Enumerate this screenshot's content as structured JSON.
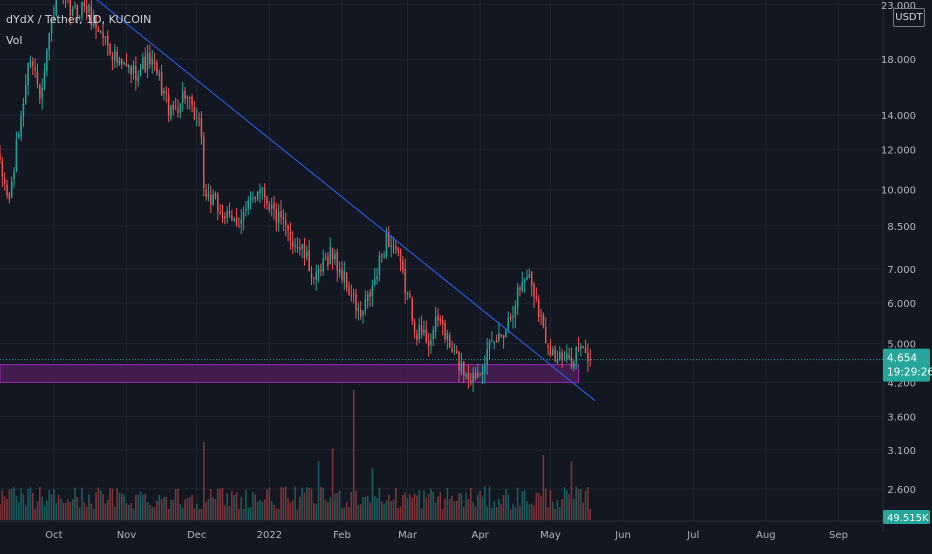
{
  "legend": {
    "symbol_line": "dYdX / Tether, 1D, KUCOIN",
    "vol_label": "Vol"
  },
  "currency_badge": "USDT",
  "colors": {
    "background": "#131722",
    "grid": "#1f2430",
    "up": "#26a69a",
    "down": "#ef5350",
    "trendline": "#2962ff",
    "zone_fill": "#4a1d54",
    "zone_border": "#9c27b0",
    "price_label_bg": "#26a69a",
    "axis_text": "#b2b5be"
  },
  "price_label": {
    "price": "4.654",
    "countdown": "19:29:26"
  },
  "volume_label": "49.515K",
  "chart_data": {
    "type": "candlestick",
    "title": "dYdX / Tether, 1D, KUCOIN",
    "y_scale": "log",
    "ylim": [
      2.25,
      23.5
    ],
    "y_ticks": [
      {
        "value": 2.6,
        "label": "2.600"
      },
      {
        "value": 3.1,
        "label": "3.100"
      },
      {
        "value": 3.6,
        "label": "3.600"
      },
      {
        "value": 4.2,
        "label": "4.200"
      },
      {
        "value": 5.0,
        "label": "5.000"
      },
      {
        "value": 6.0,
        "label": "6.000"
      },
      {
        "value": 7.0,
        "label": "7.000"
      },
      {
        "value": 8.5,
        "label": "8.500"
      },
      {
        "value": 10.0,
        "label": "10.000"
      },
      {
        "value": 12.0,
        "label": "12.000"
      },
      {
        "value": 14.0,
        "label": "14.000"
      },
      {
        "value": 18.0,
        "label": "18.000"
      },
      {
        "value": 23.0,
        "label": "23.000"
      }
    ],
    "x_ticks": [
      {
        "date": "2021-10-01",
        "label": "Oct"
      },
      {
        "date": "2021-11-01",
        "label": "Nov"
      },
      {
        "date": "2021-12-01",
        "label": "Dec"
      },
      {
        "date": "2022-01-01",
        "label": "2022"
      },
      {
        "date": "2022-02-01",
        "label": "Feb"
      },
      {
        "date": "2022-03-01",
        "label": "Mar"
      },
      {
        "date": "2022-04-01",
        "label": "Apr"
      },
      {
        "date": "2022-05-01",
        "label": "May"
      },
      {
        "date": "2022-06-01",
        "label": "Jun"
      },
      {
        "date": "2022-07-01",
        "label": "Jul"
      },
      {
        "date": "2022-08-01",
        "label": "Aug"
      },
      {
        "date": "2022-09-01",
        "label": "Sep"
      }
    ],
    "xlim": [
      "2021-09-08",
      "2022-09-20"
    ],
    "price_path": [
      [
        "2021-09-08",
        11.0
      ],
      [
        "2021-09-12",
        9.5
      ],
      [
        "2021-09-17",
        14.0
      ],
      [
        "2021-09-21",
        18.5
      ],
      [
        "2021-09-25",
        15.5
      ],
      [
        "2021-09-29",
        20.0
      ],
      [
        "2021-10-02",
        24.0
      ],
      [
        "2021-10-09",
        22.0
      ],
      [
        "2021-10-14",
        23.0
      ],
      [
        "2021-10-19",
        21.0
      ],
      [
        "2021-10-25",
        19.0
      ],
      [
        "2021-10-29",
        17.5
      ],
      [
        "2021-11-04",
        17.0
      ],
      [
        "2021-11-11",
        18.0
      ],
      [
        "2021-11-17",
        15.5
      ],
      [
        "2021-11-20",
        14.0
      ],
      [
        "2021-11-26",
        15.5
      ],
      [
        "2021-11-29",
        14.0
      ],
      [
        "2021-12-03",
        13.0
      ],
      [
        "2021-12-04",
        10.0
      ],
      [
        "2021-12-09",
        9.3
      ],
      [
        "2021-12-16",
        8.6
      ],
      [
        "2021-12-22",
        9.0
      ],
      [
        "2021-12-28",
        10.3
      ],
      [
        "2022-01-03",
        9.0
      ],
      [
        "2022-01-09",
        8.2
      ],
      [
        "2022-01-15",
        7.6
      ],
      [
        "2022-01-21",
        6.6
      ],
      [
        "2022-01-27",
        7.6
      ],
      [
        "2022-02-02",
        6.7
      ],
      [
        "2022-02-09",
        5.6
      ],
      [
        "2022-02-15",
        6.6
      ],
      [
        "2022-02-20",
        8.1
      ],
      [
        "2022-02-24",
        7.6
      ],
      [
        "2022-03-01",
        6.2
      ],
      [
        "2022-03-05",
        5.3
      ],
      [
        "2022-03-10",
        5.1
      ],
      [
        "2022-03-15",
        5.6
      ],
      [
        "2022-03-19",
        4.9
      ],
      [
        "2022-03-24",
        4.5
      ],
      [
        "2022-03-29",
        4.3
      ],
      [
        "2022-04-03",
        4.7
      ],
      [
        "2022-04-07",
        5.0
      ],
      [
        "2022-04-12",
        5.4
      ],
      [
        "2022-04-17",
        6.3
      ],
      [
        "2022-04-21",
        6.9
      ],
      [
        "2022-04-25",
        6.2
      ],
      [
        "2022-04-28",
        5.3
      ],
      [
        "2022-05-03",
        4.7
      ],
      [
        "2022-05-08",
        4.6
      ],
      [
        "2022-05-13",
        4.9
      ],
      [
        "2022-05-18",
        4.654
      ]
    ],
    "volume_spikes": [
      [
        "2021-12-04",
        0.6
      ],
      [
        "2022-01-22",
        0.45
      ],
      [
        "2022-01-28",
        0.55
      ],
      [
        "2022-02-06",
        1.0
      ],
      [
        "2022-02-14",
        0.4
      ],
      [
        "2022-04-28",
        0.5
      ],
      [
        "2022-05-10",
        0.45
      ]
    ],
    "last_price": 4.654,
    "trendline": [
      [
        "2021-10-17",
        24.0
      ],
      [
        "2022-05-20",
        3.87
      ]
    ],
    "support_zone": {
      "from": "2021-09-08",
      "to": "2022-05-13",
      "low": 4.2,
      "high": 4.55
    },
    "volume": {
      "label": "Vol",
      "last": "49.515K"
    }
  }
}
